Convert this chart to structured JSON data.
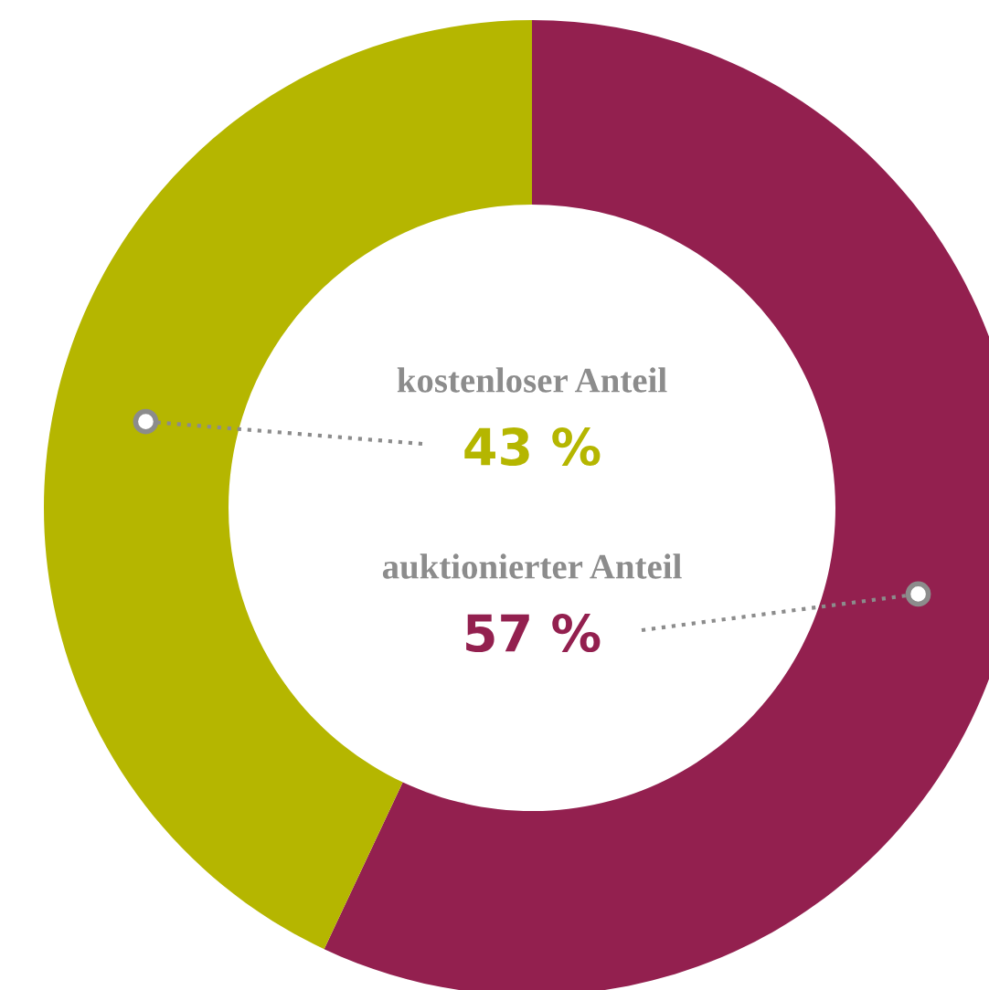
{
  "chart_data": {
    "type": "donut",
    "categories": [
      "auktionierter Anteil",
      "kostenloser Anteil"
    ],
    "values": [
      57,
      43
    ],
    "value_labels": [
      "57 %",
      "43 %"
    ],
    "colors": [
      "#93204f",
      "#b5b600"
    ],
    "legend": false
  }
}
